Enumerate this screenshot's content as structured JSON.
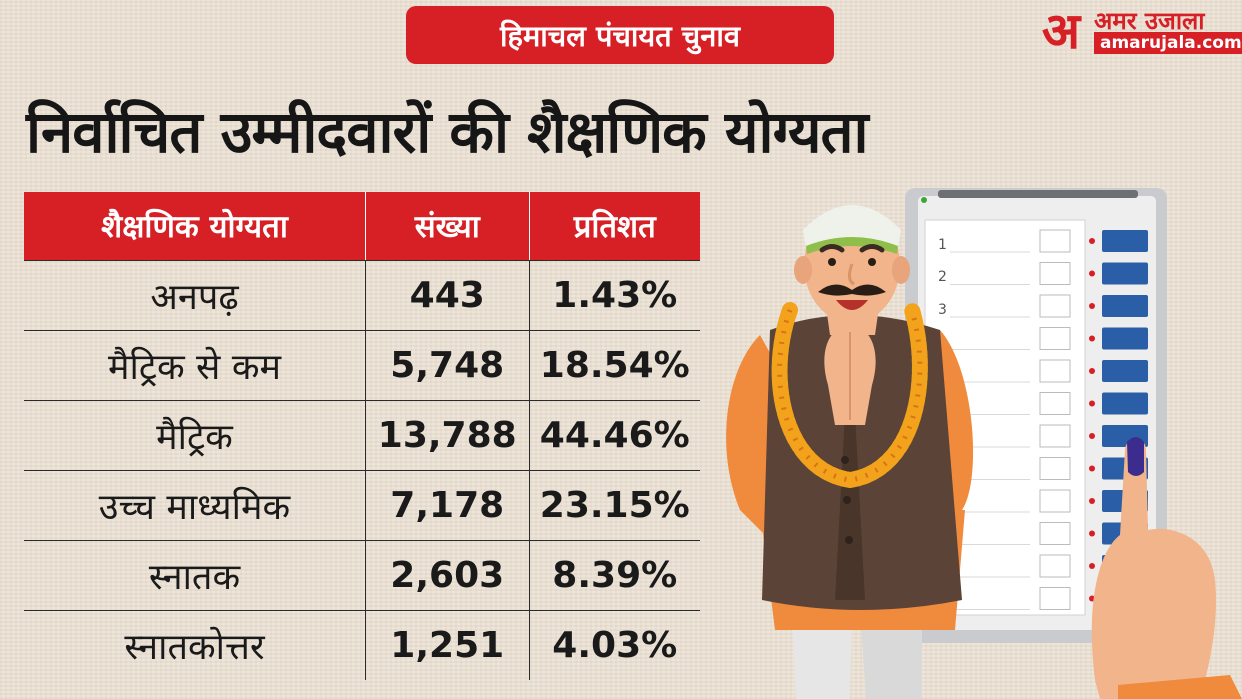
{
  "badge": "हिमाचल पंचायत चुनाव",
  "logo": {
    "mark": "अ",
    "name": "अमर उजाला",
    "url": "amarujala.com"
  },
  "headline": "निर्वाचित उम्मीदवारों की शैक्षणिक योग्यता",
  "table": {
    "headers": [
      "शैक्षणिक योग्यता",
      "संख्या",
      "प्रतिशत"
    ],
    "rows": [
      {
        "label": "अनपढ़",
        "count": "443",
        "percent": "1.43%"
      },
      {
        "label": "मैट्रिक से कम",
        "count": "5,748",
        "percent": "18.54%"
      },
      {
        "label": "मैट्रिक",
        "count": "13,788",
        "percent": "44.46%"
      },
      {
        "label": "उच्च माध्यमिक",
        "count": "7,178",
        "percent": "23.15%"
      },
      {
        "label": "स्नातक",
        "count": "2,603",
        "percent": "8.39%"
      },
      {
        "label": "स्नातकोत्तर",
        "count": "1,251",
        "percent": "4.03%"
      }
    ]
  },
  "evm": {
    "numbers": [
      "1",
      "2",
      "3"
    ]
  },
  "colors": {
    "accent": "#d71f26",
    "button": "#2a5ea6",
    "vest": "#5b4337",
    "kurta": "#f08a3c"
  }
}
